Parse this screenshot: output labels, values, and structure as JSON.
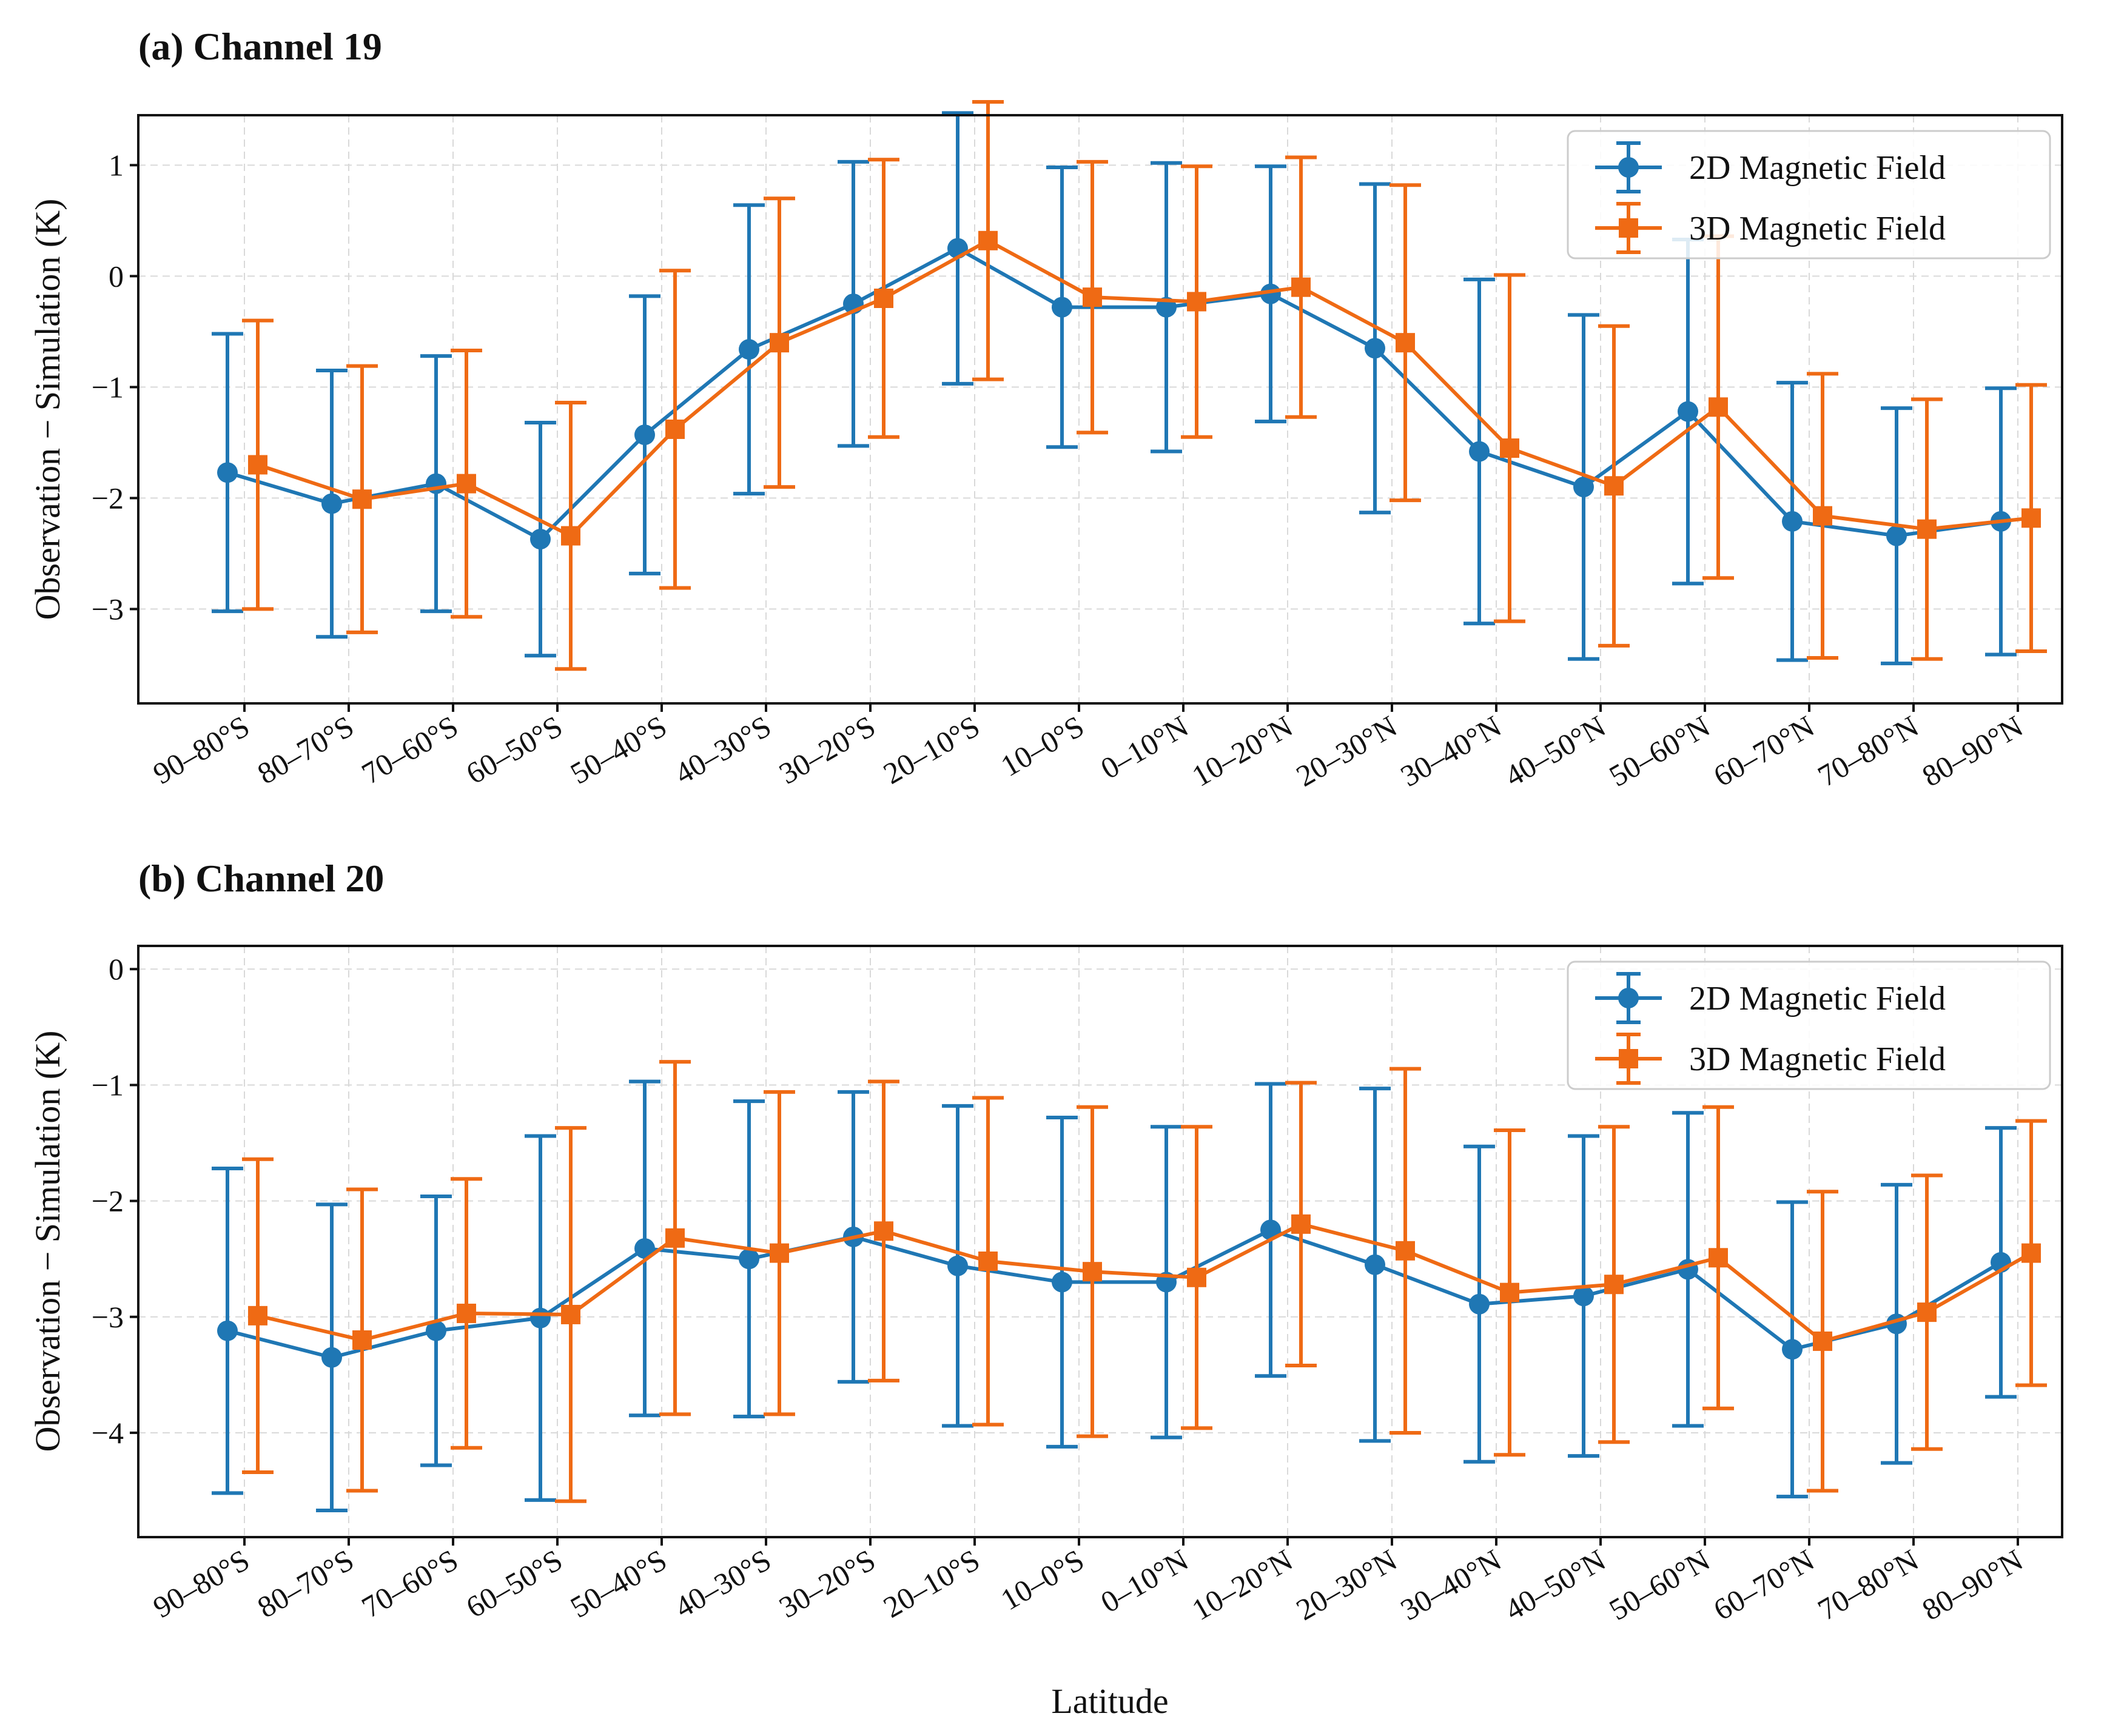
{
  "colors": {
    "series_2d": "#1f77b4",
    "series_3d": "#ef6a14"
  },
  "figure": {
    "xlabel": "Latitude"
  },
  "chart_data": [
    {
      "type": "line",
      "title": "(a) Channel 19",
      "xlabel": "Latitude",
      "ylabel": "Observation − Simulation (K)",
      "ylim": [
        -3.85,
        1.45
      ],
      "yticks": [
        1,
        0,
        -1,
        -2,
        -3
      ],
      "ytick_labels": [
        "1",
        "0",
        "−1",
        "−2",
        "−3"
      ],
      "categories": [
        "90–80°S",
        "80–70°S",
        "70–60°S",
        "60–50°S",
        "50–40°S",
        "40–30°S",
        "30–20°S",
        "20–10°S",
        "10–0°S",
        "0–10°N",
        "10–20°N",
        "20–30°N",
        "30–40°N",
        "40–50°N",
        "50–60°N",
        "60–70°N",
        "70–80°N",
        "80–90°N"
      ],
      "legend": "top-right",
      "series": [
        {
          "name": "2D Magnetic Field",
          "marker": "circle",
          "values": [
            -1.77,
            -2.05,
            -1.87,
            -2.37,
            -1.43,
            -0.66,
            -0.25,
            0.25,
            -0.28,
            -0.28,
            -0.16,
            -0.65,
            -1.58,
            -1.9,
            -1.22,
            -2.21,
            -2.34,
            -2.21
          ],
          "error": [
            1.25,
            1.2,
            1.15,
            1.05,
            1.25,
            1.3,
            1.28,
            1.22,
            1.26,
            1.3,
            1.15,
            1.48,
            1.55,
            1.55,
            1.55,
            1.25,
            1.15,
            1.2
          ]
        },
        {
          "name": "3D Magnetic Field",
          "marker": "square",
          "values": [
            -1.7,
            -2.01,
            -1.87,
            -2.34,
            -1.38,
            -0.6,
            -0.2,
            0.32,
            -0.19,
            -0.23,
            -0.1,
            -0.6,
            -1.55,
            -1.89,
            -1.18,
            -2.16,
            -2.28,
            -2.18
          ],
          "error": [
            1.3,
            1.2,
            1.2,
            1.2,
            1.43,
            1.3,
            1.25,
            1.25,
            1.22,
            1.22,
            1.17,
            1.42,
            1.56,
            1.44,
            1.54,
            1.28,
            1.17,
            1.2
          ]
        }
      ]
    },
    {
      "type": "line",
      "title": "(b) Channel 20",
      "xlabel": "Latitude",
      "ylabel": "Observation − Simulation (K)",
      "ylim": [
        -4.9,
        0.2
      ],
      "yticks": [
        0,
        -1,
        -2,
        -3,
        -4
      ],
      "ytick_labels": [
        "0",
        "−1",
        "−2",
        "−3",
        "−4"
      ],
      "categories": [
        "90–80°S",
        "80–70°S",
        "70–60°S",
        "60–50°S",
        "50–40°S",
        "40–30°S",
        "30–20°S",
        "20–10°S",
        "10–0°S",
        "0–10°N",
        "10–20°N",
        "20–30°N",
        "30–40°N",
        "40–50°N",
        "50–60°N",
        "60–70°N",
        "70–80°N",
        "80–90°N"
      ],
      "legend": "top-right",
      "series": [
        {
          "name": "2D Magnetic Field",
          "marker": "circle",
          "values": [
            -3.12,
            -3.35,
            -3.12,
            -3.01,
            -2.41,
            -2.5,
            -2.31,
            -2.56,
            -2.7,
            -2.7,
            -2.25,
            -2.55,
            -2.89,
            -2.82,
            -2.59,
            -3.28,
            -3.06,
            -2.53
          ],
          "error": [
            1.4,
            1.32,
            1.16,
            1.57,
            1.44,
            1.36,
            1.25,
            1.38,
            1.42,
            1.34,
            1.26,
            1.52,
            1.36,
            1.38,
            1.35,
            1.27,
            1.2,
            1.16
          ]
        },
        {
          "name": "3D Magnetic Field",
          "marker": "square",
          "values": [
            -2.99,
            -3.2,
            -2.97,
            -2.98,
            -2.32,
            -2.45,
            -2.26,
            -2.52,
            -2.61,
            -2.66,
            -2.2,
            -2.43,
            -2.79,
            -2.72,
            -2.49,
            -3.21,
            -2.96,
            -2.45
          ],
          "error": [
            1.35,
            1.3,
            1.16,
            1.61,
            1.52,
            1.39,
            1.29,
            1.41,
            1.42,
            1.3,
            1.22,
            1.57,
            1.4,
            1.36,
            1.3,
            1.29,
            1.18,
            1.14
          ]
        }
      ]
    }
  ]
}
